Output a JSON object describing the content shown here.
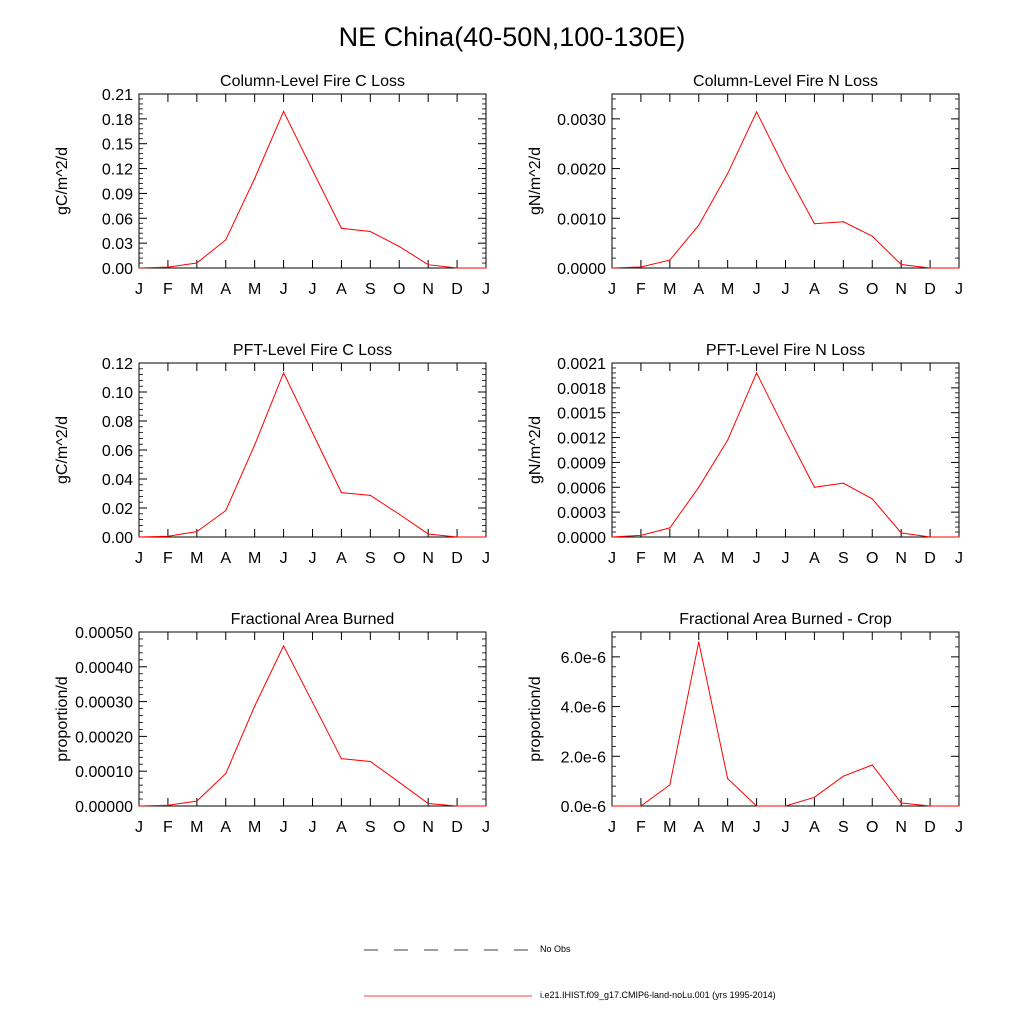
{
  "figure": {
    "title": "NE China(40-50N,100-130E)",
    "legend": [
      {
        "label": "No Obs",
        "color": "#000000",
        "style": "dashed"
      },
      {
        "label": "i.e21.IHIST.f09_g17.CMIP6-land-noLu.001 (yrs 1995-2014)",
        "color": "#ff0000",
        "style": "solid"
      }
    ]
  },
  "chart_data": [
    {
      "type": "line",
      "title": "Column-Level Fire C Loss",
      "ylabel": "gC/m^2/d",
      "categories": [
        "J",
        "F",
        "M",
        "A",
        "M",
        "J",
        "J",
        "A",
        "S",
        "O",
        "N",
        "D",
        "J"
      ],
      "ylim": [
        0,
        0.21
      ],
      "yticks": [
        "0.00",
        "0.03",
        "0.06",
        "0.09",
        "0.12",
        "0.15",
        "0.18",
        "0.21"
      ],
      "series": [
        {
          "values": [
            0.0,
            0.001,
            0.006,
            0.034,
            0.108,
            0.189,
            0.118,
            0.048,
            0.044,
            0.026,
            0.004,
            0.0,
            0.0
          ],
          "color": "#ff0000"
        }
      ]
    },
    {
      "type": "line",
      "title": "Column-Level Fire N Loss",
      "ylabel": "gN/m^2/d",
      "categories": [
        "J",
        "F",
        "M",
        "A",
        "M",
        "J",
        "J",
        "A",
        "S",
        "O",
        "N",
        "D",
        "J"
      ],
      "ylim": [
        0,
        0.0035
      ],
      "yticks": [
        "0.0000",
        "0.0010",
        "0.0020",
        "0.0030"
      ],
      "series": [
        {
          "values": [
            0.0,
            2e-05,
            0.00016,
            0.00086,
            0.0019,
            0.00314,
            0.00197,
            0.00089,
            0.00093,
            0.00064,
            7e-05,
            0.0,
            0.0
          ],
          "color": "#ff0000"
        }
      ]
    },
    {
      "type": "line",
      "title": "PFT-Level Fire C Loss",
      "ylabel": "gC/m^2/d",
      "categories": [
        "J",
        "F",
        "M",
        "A",
        "M",
        "J",
        "J",
        "A",
        "S",
        "O",
        "N",
        "D",
        "J"
      ],
      "ylim": [
        0,
        0.12
      ],
      "yticks": [
        "0.00",
        "0.02",
        "0.04",
        "0.06",
        "0.08",
        "0.10",
        "0.12"
      ],
      "series": [
        {
          "values": [
            0.0,
            0.0005,
            0.0037,
            0.0182,
            0.0635,
            0.1132,
            0.0719,
            0.0306,
            0.0287,
            0.0157,
            0.0021,
            0.0,
            0.0
          ],
          "color": "#ff0000"
        }
      ]
    },
    {
      "type": "line",
      "title": "PFT-Level Fire N Loss",
      "ylabel": "gN/m^2/d",
      "categories": [
        "J",
        "F",
        "M",
        "A",
        "M",
        "J",
        "J",
        "A",
        "S",
        "O",
        "N",
        "D",
        "J"
      ],
      "ylim": [
        0,
        0.0021
      ],
      "yticks": [
        "0.0000",
        "0.0003",
        "0.0006",
        "0.0009",
        "0.0012",
        "0.0015",
        "0.0018",
        "0.0021"
      ],
      "series": [
        {
          "values": [
            0.0,
            2e-05,
            0.00011,
            0.0006,
            0.00117,
            0.00198,
            0.00128,
            0.0006,
            0.00065,
            0.00046,
            5e-05,
            0.0,
            0.0
          ],
          "color": "#ff0000"
        }
      ]
    },
    {
      "type": "line",
      "title": "Fractional Area Burned",
      "ylabel": "proportion/d",
      "categories": [
        "J",
        "F",
        "M",
        "A",
        "M",
        "J",
        "J",
        "A",
        "S",
        "O",
        "N",
        "D",
        "J"
      ],
      "ylim": [
        0,
        0.0005
      ],
      "yticks": [
        "0.00000",
        "0.00010",
        "0.00020",
        "0.00030",
        "0.00040",
        "0.00050"
      ],
      "series": [
        {
          "values": [
            0.0,
            2e-06,
            1.4e-05,
            9.3e-05,
            0.000287,
            0.00046,
            0.000298,
            0.000136,
            0.000128,
            6.8e-05,
            7e-06,
            0.0,
            0.0
          ],
          "color": "#ff0000"
        }
      ]
    },
    {
      "type": "line",
      "title": "Fractional Area Burned - Crop",
      "ylabel": "proportion/d",
      "categories": [
        "J",
        "F",
        "M",
        "A",
        "M",
        "J",
        "J",
        "A",
        "S",
        "O",
        "N",
        "D",
        "J"
      ],
      "ylim": [
        0,
        7e-06
      ],
      "yticks": [
        "0.0e-6",
        "2.0e-6",
        "4.0e-6",
        "6.0e-6"
      ],
      "series": [
        {
          "values": [
            0.0,
            0.0,
            8.5e-07,
            6.6e-06,
            1.1e-06,
            0.0,
            0.0,
            3.5e-07,
            1.2e-06,
            1.65e-06,
            1.2e-07,
            0.0,
            0.0
          ],
          "color": "#ff0000"
        }
      ]
    }
  ]
}
